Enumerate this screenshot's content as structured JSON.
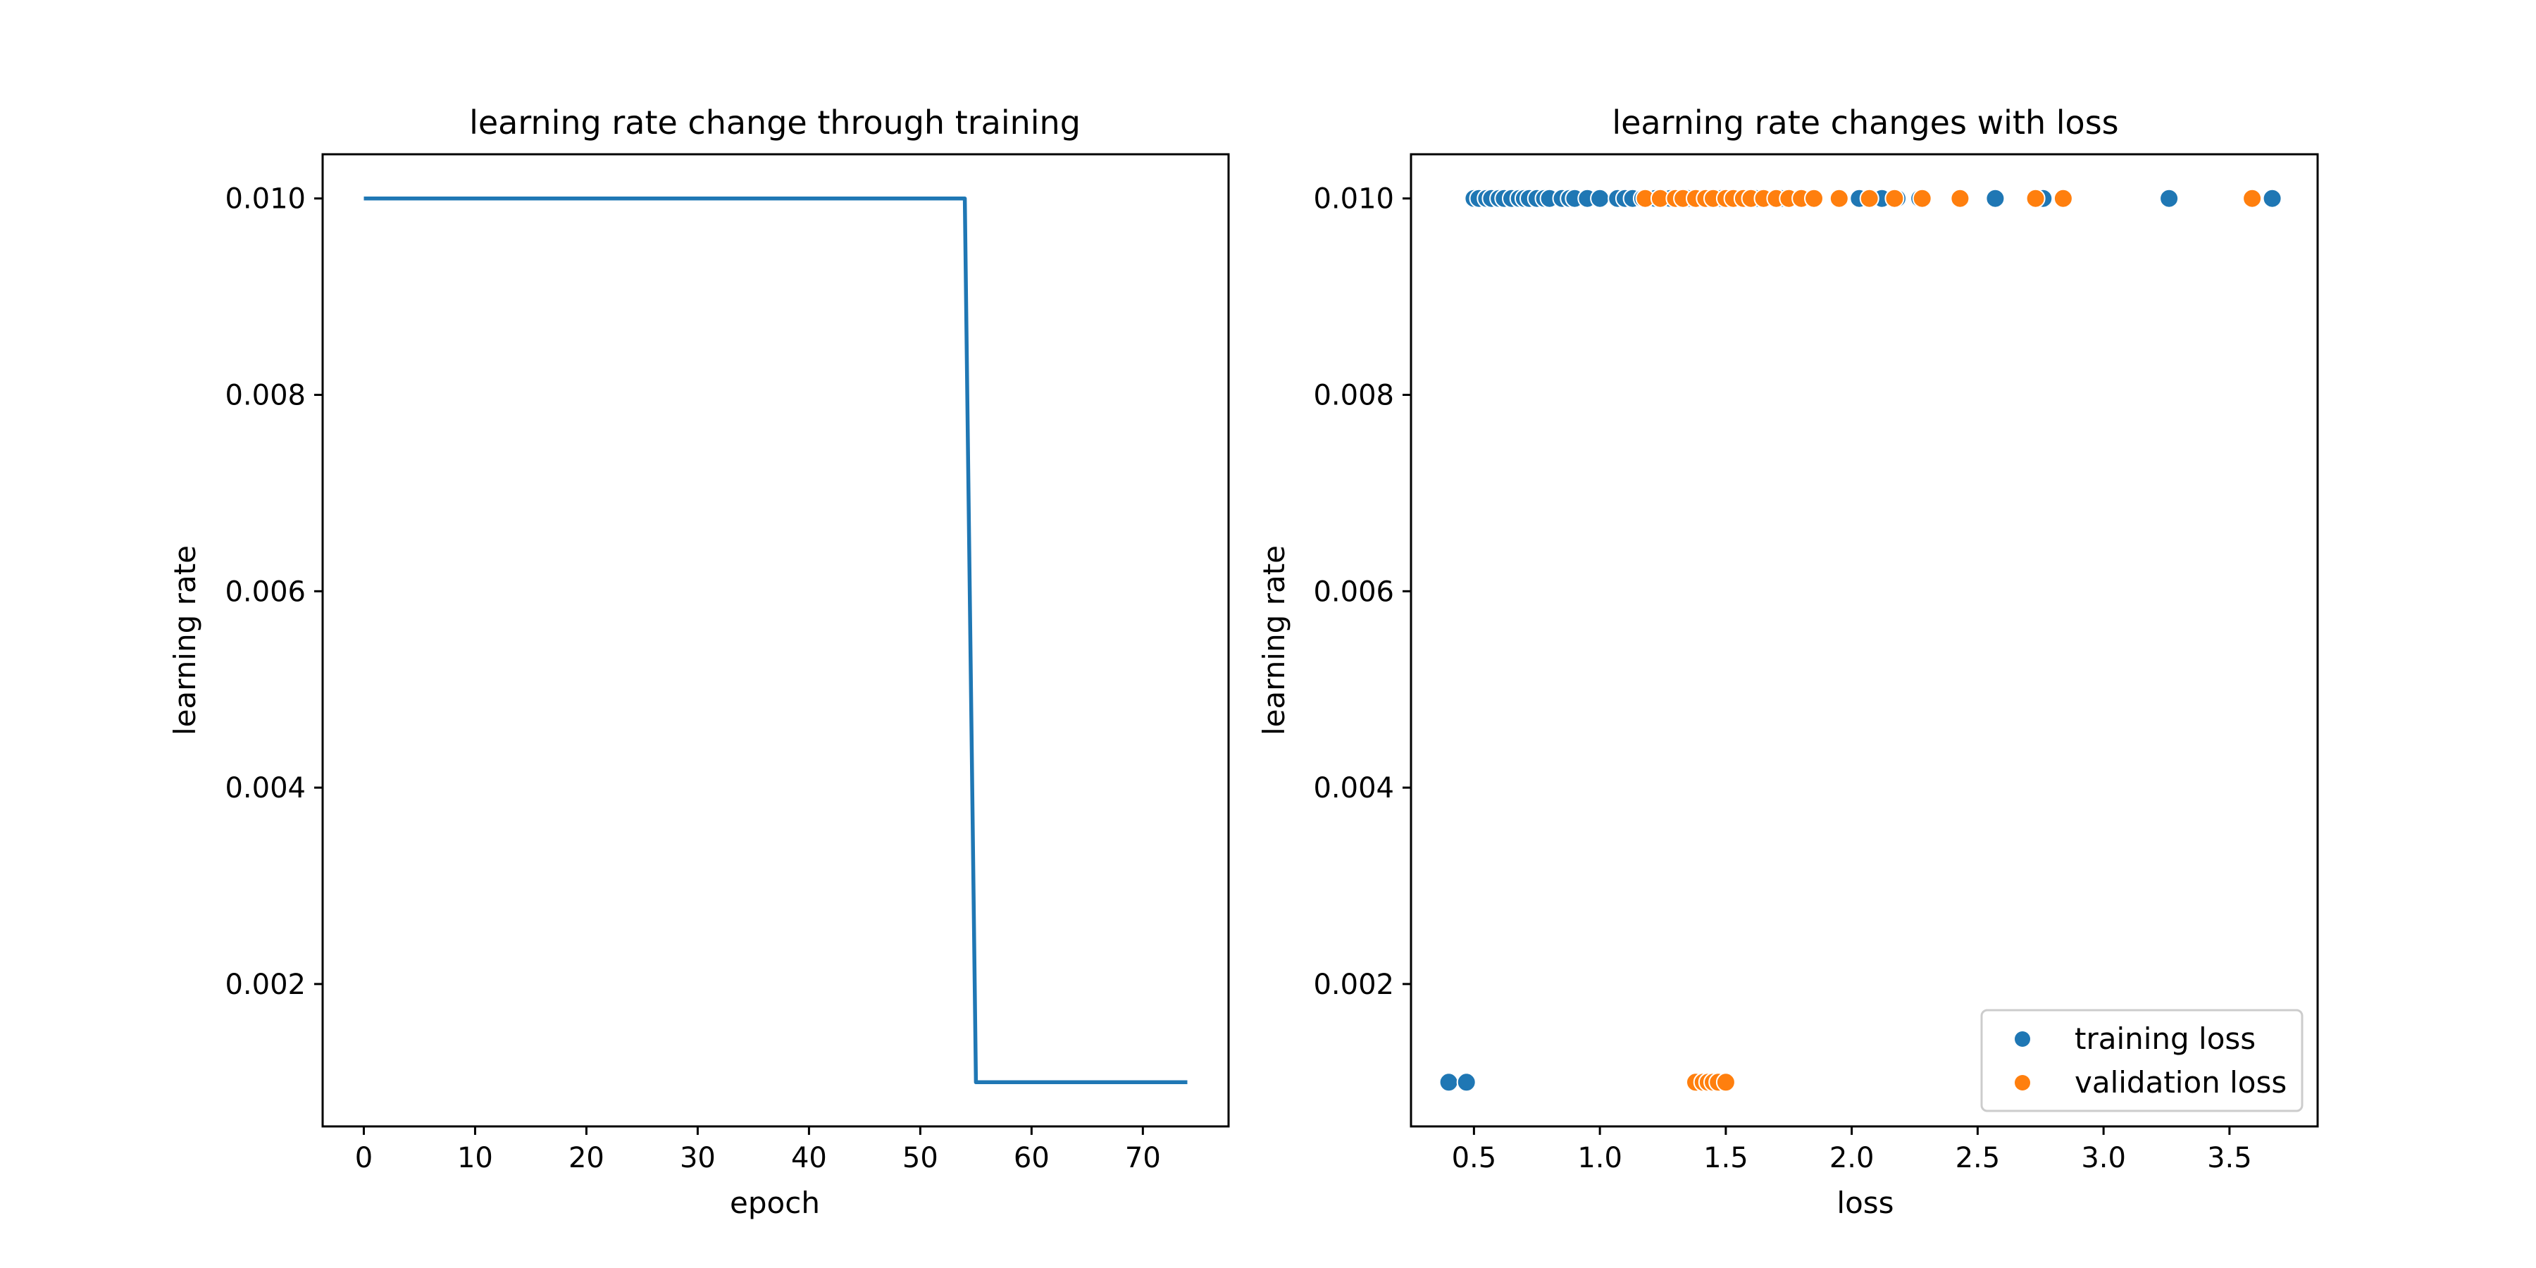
{
  "chart_data": [
    {
      "type": "line",
      "title": "learning rate change through training",
      "xlabel": "epoch",
      "ylabel": "learning rate",
      "xlim": [
        -3.7,
        77.7
      ],
      "ylim": [
        0.00055,
        0.01045
      ],
      "xticks": [
        "0",
        "10",
        "20",
        "30",
        "40",
        "50",
        "60",
        "70"
      ],
      "yticks": [
        "0.002",
        "0.004",
        "0.006",
        "0.008",
        "0.010"
      ],
      "grid": false,
      "color": "#1f77b4",
      "series": [
        {
          "x": [
            0,
            54,
            55,
            74
          ],
          "y": [
            0.01,
            0.01,
            0.001,
            0.001
          ]
        }
      ]
    },
    {
      "type": "scatter",
      "title": "learning rate changes with loss",
      "xlabel": "loss",
      "ylabel": "learning rate",
      "xlim": [
        0.25,
        3.85
      ],
      "ylim": [
        0.00055,
        0.01045
      ],
      "xticks": [
        "0.5",
        "1.0",
        "1.5",
        "2.0",
        "2.5",
        "3.0",
        "3.5"
      ],
      "yticks": [
        "0.002",
        "0.004",
        "0.006",
        "0.008",
        "0.010"
      ],
      "grid": false,
      "legend_position": "lower-right",
      "series": [
        {
          "name": "training loss",
          "color": "#1f77b4",
          "points": [
            [
              0.5,
              0.01
            ],
            [
              0.52,
              0.01
            ],
            [
              0.55,
              0.01
            ],
            [
              0.57,
              0.01
            ],
            [
              0.6,
              0.01
            ],
            [
              0.62,
              0.01
            ],
            [
              0.65,
              0.01
            ],
            [
              0.68,
              0.01
            ],
            [
              0.7,
              0.01
            ],
            [
              0.72,
              0.01
            ],
            [
              0.75,
              0.01
            ],
            [
              0.78,
              0.01
            ],
            [
              0.8,
              0.01
            ],
            [
              0.85,
              0.01
            ],
            [
              0.88,
              0.01
            ],
            [
              0.9,
              0.01
            ],
            [
              0.95,
              0.01
            ],
            [
              1.0,
              0.01
            ],
            [
              1.07,
              0.01
            ],
            [
              1.1,
              0.01
            ],
            [
              1.13,
              0.01
            ],
            [
              1.17,
              0.01
            ],
            [
              1.22,
              0.01
            ],
            [
              1.28,
              0.01
            ],
            [
              1.35,
              0.01
            ],
            [
              1.48,
              0.01
            ],
            [
              1.62,
              0.01
            ],
            [
              1.72,
              0.01
            ],
            [
              2.03,
              0.01
            ],
            [
              2.12,
              0.01
            ],
            [
              2.18,
              0.01
            ],
            [
              2.27,
              0.01
            ],
            [
              2.57,
              0.01
            ],
            [
              2.76,
              0.01
            ],
            [
              3.26,
              0.01
            ],
            [
              3.67,
              0.01
            ],
            [
              0.4,
              0.001
            ],
            [
              0.47,
              0.001
            ]
          ]
        },
        {
          "name": "validation loss",
          "color": "#ff7f0e",
          "points": [
            [
              1.18,
              0.01
            ],
            [
              1.24,
              0.01
            ],
            [
              1.3,
              0.01
            ],
            [
              1.33,
              0.01
            ],
            [
              1.38,
              0.01
            ],
            [
              1.42,
              0.01
            ],
            [
              1.45,
              0.01
            ],
            [
              1.5,
              0.01
            ],
            [
              1.53,
              0.01
            ],
            [
              1.57,
              0.01
            ],
            [
              1.6,
              0.01
            ],
            [
              1.65,
              0.01
            ],
            [
              1.7,
              0.01
            ],
            [
              1.75,
              0.01
            ],
            [
              1.8,
              0.01
            ],
            [
              1.85,
              0.01
            ],
            [
              1.95,
              0.01
            ],
            [
              2.07,
              0.01
            ],
            [
              2.17,
              0.01
            ],
            [
              2.28,
              0.01
            ],
            [
              2.43,
              0.01
            ],
            [
              2.73,
              0.01
            ],
            [
              2.84,
              0.01
            ],
            [
              3.59,
              0.01
            ],
            [
              1.38,
              0.001
            ],
            [
              1.41,
              0.001
            ],
            [
              1.43,
              0.001
            ],
            [
              1.45,
              0.001
            ],
            [
              1.47,
              0.001
            ],
            [
              1.5,
              0.001
            ]
          ]
        }
      ]
    }
  ]
}
